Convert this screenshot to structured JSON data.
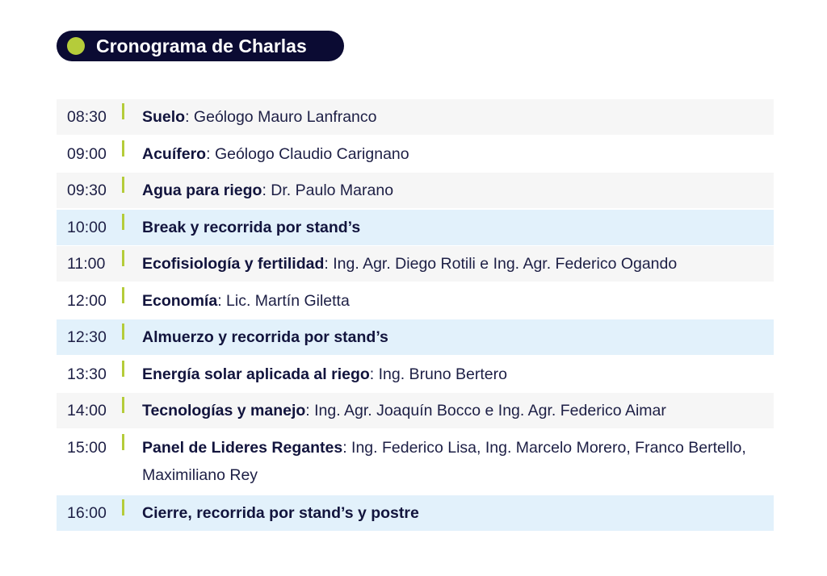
{
  "header": {
    "title": "Cronograma de Charlas",
    "accent_color": "#b5cc3a",
    "pill_color": "#0b0b33"
  },
  "schedule": [
    {
      "time": "08:30",
      "topic": "Suelo",
      "speakers": ": Geólogo Mauro Lanfranco",
      "style": "grey"
    },
    {
      "time": "09:00",
      "topic": "Acuífero",
      "speakers": ": Geólogo Claudio Carignano",
      "style": "white"
    },
    {
      "time": "09:30",
      "topic": "Agua para riego",
      "speakers": ": Dr. Paulo Marano",
      "style": "grey"
    },
    {
      "time": "10:00",
      "topic": "Break y recorrida por stand’s",
      "speakers": "",
      "style": "blue"
    },
    {
      "time": "11:00",
      "topic": "Ecofisiología y fertilidad",
      "speakers": ": Ing. Agr. Diego Rotili e Ing. Agr. Federico Ogando",
      "style": "grey"
    },
    {
      "time": "12:00",
      "topic": "Economía",
      "speakers": ": Lic. Martín Giletta",
      "style": "white"
    },
    {
      "time": "12:30",
      "topic": "Almuerzo y recorrida por stand’s",
      "speakers": "",
      "style": "blue"
    },
    {
      "time": "13:30",
      "topic": "Energía solar aplicada al riego",
      "speakers": ": Ing. Bruno Bertero",
      "style": "white"
    },
    {
      "time": "14:00",
      "topic": "Tecnologías y manejo",
      "speakers": ": Ing. Agr. Joaquín Bocco e Ing. Agr. Federico Aimar",
      "style": "grey"
    },
    {
      "time": "15:00",
      "topic": "Panel de Lideres Regantes",
      "speakers": ": Ing. Federico Lisa, Ing. Marcelo Morero, Franco Bertello, Maximiliano Rey",
      "style": "white"
    },
    {
      "time": "16:00",
      "topic": "Cierre, recorrida por stand’s y postre",
      "speakers": "",
      "style": "blue"
    }
  ]
}
